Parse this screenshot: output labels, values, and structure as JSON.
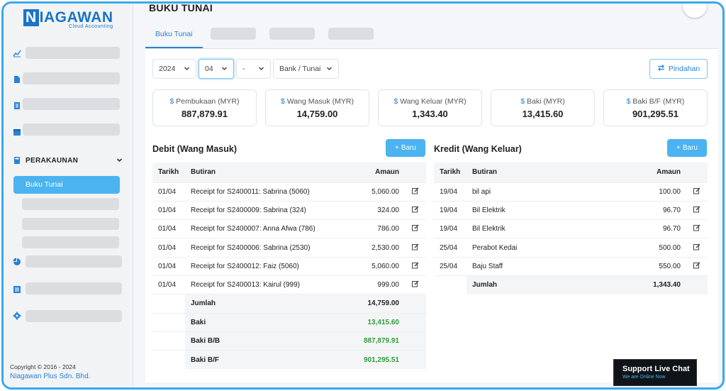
{
  "brand": {
    "logo_n": "N",
    "logo_rest": "IAGAWAN",
    "tagline": "Cloud Accounting",
    "color": "#1a73c9"
  },
  "sidebar": {
    "section": {
      "label": "PERAKAUNAN"
    },
    "active_item": "Buku Tunai",
    "copyright": "Copyright © 2016 - 2024",
    "company": "Niagawan Plus Sdn. Bhd."
  },
  "page": {
    "title": "BUKU TUNAI"
  },
  "tabs": {
    "active": "Buku Tunai"
  },
  "filters": {
    "year": "2024",
    "month": "04",
    "day": "-",
    "account": "Bank / Tunai",
    "transfer_button": "Pindahan"
  },
  "summary": [
    {
      "label": "Pembukaan (MYR)",
      "value": "887,879.91"
    },
    {
      "label": "Wang Masuk (MYR)",
      "value": "14,759.00"
    },
    {
      "label": "Wang Keluar (MYR)",
      "value": "1,343.40"
    },
    {
      "label": "Baki (MYR)",
      "value": "13,415.60"
    },
    {
      "label": "Baki B/F (MYR)",
      "value": "901,295.51"
    }
  ],
  "debit": {
    "title": "Debit (Wang Masuk)",
    "new_button": "Baru",
    "headers": {
      "date": "Tarikh",
      "desc": "Butiran",
      "amount": "Amaun"
    },
    "rows": [
      {
        "date": "01/04",
        "desc": "Receipt for S2400011: Sabrina (5060)",
        "amount": "5,060.00"
      },
      {
        "date": "01/04",
        "desc": "Receipt for S2400009: Sabrina (324)",
        "amount": "324.00"
      },
      {
        "date": "01/04",
        "desc": "Receipt for S2400007: Anna Afwa (786)",
        "amount": "786.00"
      },
      {
        "date": "01/04",
        "desc": "Receipt for S2400006: Sabrina (2530)",
        "amount": "2,530.00"
      },
      {
        "date": "01/04",
        "desc": "Receipt for S2400012: Faiz (5060)",
        "amount": "5,060.00"
      },
      {
        "date": "01/04",
        "desc": "Receipt for S2400013: Kairul (999)",
        "amount": "999.00"
      }
    ],
    "totals": [
      {
        "label": "Jumlah",
        "value": "14,759.00"
      },
      {
        "label": "Baki",
        "value": "13,415.60"
      },
      {
        "label": "Baki B/B",
        "value": "887,879.91"
      },
      {
        "label": "Baki B/F",
        "value": "901,295.51"
      }
    ]
  },
  "credit": {
    "title": "Kredit (Wang Keluar)",
    "new_button": "Baru",
    "headers": {
      "date": "Tarikh",
      "desc": "Butiran",
      "amount": "Amaun"
    },
    "rows": [
      {
        "date": "19/04",
        "desc": "bil api",
        "amount": "100.00"
      },
      {
        "date": "19/04",
        "desc": "Bil Elektrik",
        "amount": "96.70"
      },
      {
        "date": "19/04",
        "desc": "Bil Elektrik",
        "amount": "96.70"
      },
      {
        "date": "25/04",
        "desc": "Perabot Kedai",
        "amount": "500.00"
      },
      {
        "date": "25/04",
        "desc": "Baju Staff",
        "amount": "550.00"
      }
    ],
    "totals": [
      {
        "label": "Jumlah",
        "value": "1,343.40"
      }
    ]
  },
  "live_chat": {
    "title": "Support Live Chat",
    "status": "We are Online Now"
  },
  "icons": {
    "nav": [
      "chart-line-icon",
      "file-icon",
      "document-icon",
      "calendar-icon",
      "calculator-icon",
      "pie-chart-icon",
      "report-icon",
      "gear-icon"
    ],
    "edit": "edit-icon",
    "transfer": "transfer-icon",
    "plus": "plus-icon",
    "dollar": "dollar-icon"
  },
  "colors": {
    "accent": "#4ab3f0",
    "primary": "#2a82d6",
    "positive": "#2e9e3a",
    "frame": "#3aa8ec"
  }
}
